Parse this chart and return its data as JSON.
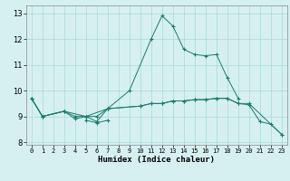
{
  "xlabel": "Humidex (Indice chaleur)",
  "bg_color": "#d6f0f0",
  "grid_color": "#a8d8d8",
  "line_color": "#1a7a6e",
  "xlim": [
    -0.5,
    23.5
  ],
  "ylim": [
    7.9,
    13.3
  ],
  "yticks": [
    8,
    9,
    10,
    11,
    12,
    13
  ],
  "xticks": [
    0,
    1,
    2,
    3,
    4,
    5,
    6,
    7,
    8,
    9,
    10,
    11,
    12,
    13,
    14,
    15,
    16,
    17,
    18,
    19,
    20,
    21,
    22,
    23
  ],
  "series1_x": [
    0,
    1,
    3,
    4,
    5,
    6,
    7,
    10,
    11,
    12,
    13,
    14,
    15,
    16,
    17,
    18,
    19,
    20,
    21,
    22,
    23
  ],
  "series1_y": [
    9.7,
    9.0,
    9.2,
    8.9,
    9.0,
    8.8,
    9.3,
    9.4,
    9.5,
    9.5,
    9.6,
    9.6,
    9.65,
    9.65,
    9.7,
    9.7,
    9.5,
    9.45,
    8.8,
    8.7,
    8.3
  ],
  "series2_x": [
    0,
    1,
    3,
    4,
    5,
    6,
    7,
    10,
    11,
    12,
    13,
    14,
    15,
    16,
    17,
    18,
    19,
    20,
    23
  ],
  "series2_y": [
    9.7,
    9.0,
    9.2,
    9.0,
    9.0,
    9.0,
    9.3,
    9.4,
    9.5,
    9.5,
    9.6,
    9.6,
    9.65,
    9.65,
    9.7,
    9.7,
    9.5,
    9.5,
    8.3
  ],
  "series3_x": [
    0,
    1,
    3,
    5,
    7,
    9,
    11,
    12,
    13,
    14,
    15,
    16,
    17,
    18,
    19
  ],
  "series3_y": [
    9.7,
    9.0,
    9.2,
    9.0,
    9.3,
    10.0,
    12.0,
    12.9,
    12.5,
    11.6,
    11.4,
    11.35,
    11.4,
    10.5,
    9.7
  ],
  "series4_x": [
    5,
    6,
    7
  ],
  "series4_y": [
    8.85,
    8.75,
    8.85
  ]
}
